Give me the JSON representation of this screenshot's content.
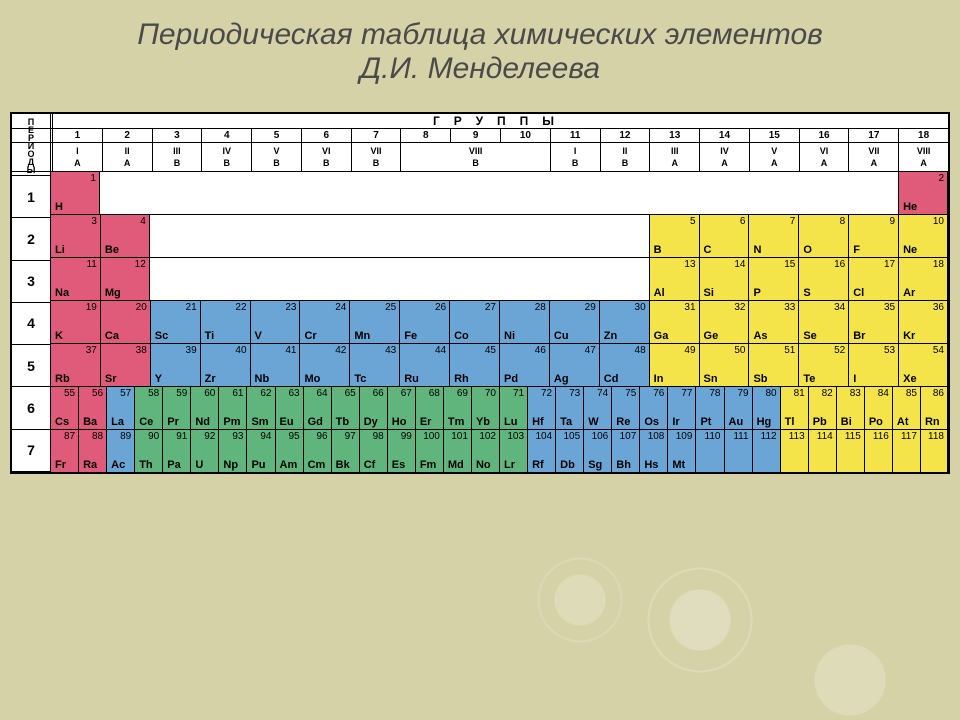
{
  "title": "Периодическая таблица химических элементов\nД.И. Менделеева",
  "side_label": "ПЕРИОДЫ",
  "group_header": "ГРУППЫ",
  "colors": {
    "red": "#e05a7a",
    "blue": "#6aa5d6",
    "green": "#5fb57c",
    "yellow": "#f5e34a",
    "page_bg": "#d6d2a8",
    "title_color": "#4a4a4a"
  },
  "group_numbers": [
    "1",
    "2",
    "3",
    "4",
    "5",
    "6",
    "7",
    "8",
    "9",
    "10",
    "11",
    "12",
    "13",
    "14",
    "15",
    "16",
    "17",
    "18"
  ],
  "group_roman": [
    {
      "top": "I",
      "bot": "A"
    },
    {
      "top": "II",
      "bot": "A"
    },
    {
      "top": "III",
      "bot": "B",
      "span": 1
    },
    {
      "top": "IV",
      "bot": "B"
    },
    {
      "top": "V",
      "bot": "B"
    },
    {
      "top": "VI",
      "bot": "B"
    },
    {
      "top": "VII",
      "bot": "B"
    },
    {
      "top": "VIII",
      "bot": "B",
      "span": 3
    },
    {
      "top": "I",
      "bot": "B"
    },
    {
      "top": "II",
      "bot": "B"
    },
    {
      "top": "III",
      "bot": "A"
    },
    {
      "top": "IV",
      "bot": "A"
    },
    {
      "top": "V",
      "bot": "A"
    },
    {
      "top": "VI",
      "bot": "A"
    },
    {
      "top": "VII",
      "bot": "A"
    },
    {
      "top": "VIII",
      "bot": "A"
    }
  ],
  "periods": [
    "1",
    "2",
    "3",
    "4",
    "5",
    "6",
    "7"
  ],
  "rows": [
    [
      {
        "g": 1,
        "Z": "1",
        "S": "H",
        "c": "red"
      },
      {
        "g": 18,
        "Z": "2",
        "S": "He",
        "c": "red"
      }
    ],
    [
      {
        "g": 1,
        "Z": "3",
        "S": "Li",
        "c": "red"
      },
      {
        "g": 2,
        "Z": "4",
        "S": "Be",
        "c": "red"
      },
      {
        "g": 13,
        "Z": "5",
        "S": "B",
        "c": "yellow"
      },
      {
        "g": 14,
        "Z": "6",
        "S": "C",
        "c": "yellow"
      },
      {
        "g": 15,
        "Z": "7",
        "S": "N",
        "c": "yellow"
      },
      {
        "g": 16,
        "Z": "8",
        "S": "O",
        "c": "yellow"
      },
      {
        "g": 17,
        "Z": "9",
        "S": "F",
        "c": "yellow"
      },
      {
        "g": 18,
        "Z": "10",
        "S": "Ne",
        "c": "yellow"
      }
    ],
    [
      {
        "g": 1,
        "Z": "11",
        "S": "Na",
        "c": "red"
      },
      {
        "g": 2,
        "Z": "12",
        "S": "Mg",
        "c": "red"
      },
      {
        "g": 13,
        "Z": "13",
        "S": "Al",
        "c": "yellow"
      },
      {
        "g": 14,
        "Z": "14",
        "S": "Si",
        "c": "yellow"
      },
      {
        "g": 15,
        "Z": "15",
        "S": "P",
        "c": "yellow"
      },
      {
        "g": 16,
        "Z": "16",
        "S": "S",
        "c": "yellow"
      },
      {
        "g": 17,
        "Z": "17",
        "S": "Cl",
        "c": "yellow"
      },
      {
        "g": 18,
        "Z": "18",
        "S": "Ar",
        "c": "yellow"
      }
    ],
    [
      {
        "g": 1,
        "Z": "19",
        "S": "K",
        "c": "red"
      },
      {
        "g": 2,
        "Z": "20",
        "S": "Ca",
        "c": "red"
      },
      {
        "g": 3,
        "Z": "21",
        "S": "Sc",
        "c": "blue"
      },
      {
        "g": 4,
        "Z": "22",
        "S": "Ti",
        "c": "blue"
      },
      {
        "g": 5,
        "Z": "23",
        "S": "V",
        "c": "blue"
      },
      {
        "g": 6,
        "Z": "24",
        "S": "Cr",
        "c": "blue"
      },
      {
        "g": 7,
        "Z": "25",
        "S": "Mn",
        "c": "blue"
      },
      {
        "g": 8,
        "Z": "26",
        "S": "Fe",
        "c": "blue"
      },
      {
        "g": 9,
        "Z": "27",
        "S": "Co",
        "c": "blue"
      },
      {
        "g": 10,
        "Z": "28",
        "S": "Ni",
        "c": "blue"
      },
      {
        "g": 11,
        "Z": "29",
        "S": "Cu",
        "c": "blue"
      },
      {
        "g": 12,
        "Z": "30",
        "S": "Zn",
        "c": "blue"
      },
      {
        "g": 13,
        "Z": "31",
        "S": "Ga",
        "c": "yellow"
      },
      {
        "g": 14,
        "Z": "32",
        "S": "Ge",
        "c": "yellow"
      },
      {
        "g": 15,
        "Z": "33",
        "S": "As",
        "c": "yellow"
      },
      {
        "g": 16,
        "Z": "34",
        "S": "Se",
        "c": "yellow"
      },
      {
        "g": 17,
        "Z": "35",
        "S": "Br",
        "c": "yellow"
      },
      {
        "g": 18,
        "Z": "36",
        "S": "Kr",
        "c": "yellow"
      }
    ],
    [
      {
        "g": 1,
        "Z": "37",
        "S": "Rb",
        "c": "red"
      },
      {
        "g": 2,
        "Z": "38",
        "S": "Sr",
        "c": "red"
      },
      {
        "g": 3,
        "Z": "39",
        "S": "Y",
        "c": "blue"
      },
      {
        "g": 4,
        "Z": "40",
        "S": "Zr",
        "c": "blue"
      },
      {
        "g": 5,
        "Z": "41",
        "S": "Nb",
        "c": "blue"
      },
      {
        "g": 6,
        "Z": "42",
        "S": "Mo",
        "c": "blue"
      },
      {
        "g": 7,
        "Z": "43",
        "S": "Tc",
        "c": "blue"
      },
      {
        "g": 8,
        "Z": "44",
        "S": "Ru",
        "c": "blue"
      },
      {
        "g": 9,
        "Z": "45",
        "S": "Rh",
        "c": "blue"
      },
      {
        "g": 10,
        "Z": "46",
        "S": "Pd",
        "c": "blue"
      },
      {
        "g": 11,
        "Z": "47",
        "S": "Ag",
        "c": "blue"
      },
      {
        "g": 12,
        "Z": "48",
        "S": "Cd",
        "c": "blue"
      },
      {
        "g": 13,
        "Z": "49",
        "S": "In",
        "c": "yellow"
      },
      {
        "g": 14,
        "Z": "50",
        "S": "Sn",
        "c": "yellow"
      },
      {
        "g": 15,
        "Z": "51",
        "S": "Sb",
        "c": "yellow"
      },
      {
        "g": 16,
        "Z": "52",
        "S": "Te",
        "c": "yellow"
      },
      {
        "g": 17,
        "Z": "53",
        "S": "I",
        "c": "yellow"
      },
      {
        "g": 18,
        "Z": "54",
        "S": "Xe",
        "c": "yellow"
      }
    ],
    [
      {
        "g": 1,
        "Z": "55",
        "S": "Cs",
        "c": "red"
      },
      {
        "g": 2,
        "Z": "56",
        "S": "Ba",
        "c": "red"
      },
      {
        "g": 3,
        "Z": "57",
        "S": "La",
        "c": "blue"
      },
      {
        "g": 3.1,
        "Z": "58",
        "S": "Ce",
        "c": "green"
      },
      {
        "g": 3.2,
        "Z": "59",
        "S": "Pr",
        "c": "green"
      },
      {
        "g": 3.3,
        "Z": "60",
        "S": "Nd",
        "c": "green"
      },
      {
        "g": 3.4,
        "Z": "61",
        "S": "Pm",
        "c": "green"
      },
      {
        "g": 3.5,
        "Z": "62",
        "S": "Sm",
        "c": "green"
      },
      {
        "g": 3.6,
        "Z": "63",
        "S": "Eu",
        "c": "green"
      },
      {
        "g": 3.7,
        "Z": "64",
        "S": "Gd",
        "c": "green"
      },
      {
        "g": 3.8,
        "Z": "65",
        "S": "Tb",
        "c": "green"
      },
      {
        "g": 3.9,
        "Z": "66",
        "S": "Dy",
        "c": "green"
      },
      {
        "g": 3.91,
        "Z": "67",
        "S": "Ho",
        "c": "green"
      },
      {
        "g": 3.92,
        "Z": "68",
        "S": "Er",
        "c": "green"
      },
      {
        "g": 3.93,
        "Z": "69",
        "S": "Tm",
        "c": "green"
      },
      {
        "g": 3.94,
        "Z": "70",
        "S": "Yb",
        "c": "green"
      },
      {
        "g": 3.95,
        "Z": "71",
        "S": "Lu",
        "c": "green"
      },
      {
        "g": 4,
        "Z": "72",
        "S": "Hf",
        "c": "blue"
      },
      {
        "g": 5,
        "Z": "73",
        "S": "Ta",
        "c": "blue"
      },
      {
        "g": 6,
        "Z": "74",
        "S": "W",
        "c": "blue"
      },
      {
        "g": 7,
        "Z": "75",
        "S": "Re",
        "c": "blue"
      },
      {
        "g": 8,
        "Z": "76",
        "S": "Os",
        "c": "blue"
      },
      {
        "g": 9,
        "Z": "77",
        "S": "Ir",
        "c": "blue"
      },
      {
        "g": 10,
        "Z": "78",
        "S": "Pt",
        "c": "blue"
      },
      {
        "g": 11,
        "Z": "79",
        "S": "Au",
        "c": "blue"
      },
      {
        "g": 12,
        "Z": "80",
        "S": "Hg",
        "c": "blue"
      },
      {
        "g": 13,
        "Z": "81",
        "S": "Tl",
        "c": "yellow"
      },
      {
        "g": 14,
        "Z": "82",
        "S": "Pb",
        "c": "yellow"
      },
      {
        "g": 15,
        "Z": "83",
        "S": "Bi",
        "c": "yellow"
      },
      {
        "g": 16,
        "Z": "84",
        "S": "Po",
        "c": "yellow"
      },
      {
        "g": 17,
        "Z": "85",
        "S": "At",
        "c": "yellow"
      },
      {
        "g": 18,
        "Z": "86",
        "S": "Rn",
        "c": "yellow"
      }
    ],
    [
      {
        "g": 1,
        "Z": "87",
        "S": "Fr",
        "c": "red"
      },
      {
        "g": 2,
        "Z": "88",
        "S": "Ra",
        "c": "red"
      },
      {
        "g": 3,
        "Z": "89",
        "S": "Ac",
        "c": "blue"
      },
      {
        "g": 3.1,
        "Z": "90",
        "S": "Th",
        "c": "green"
      },
      {
        "g": 3.2,
        "Z": "91",
        "S": "Pa",
        "c": "green"
      },
      {
        "g": 3.3,
        "Z": "92",
        "S": "U",
        "c": "green"
      },
      {
        "g": 3.4,
        "Z": "93",
        "S": "Np",
        "c": "green"
      },
      {
        "g": 3.5,
        "Z": "94",
        "S": "Pu",
        "c": "green"
      },
      {
        "g": 3.6,
        "Z": "95",
        "S": "Am",
        "c": "green"
      },
      {
        "g": 3.7,
        "Z": "96",
        "S": "Cm",
        "c": "green"
      },
      {
        "g": 3.8,
        "Z": "97",
        "S": "Bk",
        "c": "green"
      },
      {
        "g": 3.9,
        "Z": "98",
        "S": "Cf",
        "c": "green"
      },
      {
        "g": 3.91,
        "Z": "99",
        "S": "Es",
        "c": "green"
      },
      {
        "g": 3.92,
        "Z": "100",
        "S": "Fm",
        "c": "green"
      },
      {
        "g": 3.93,
        "Z": "101",
        "S": "Md",
        "c": "green"
      },
      {
        "g": 3.94,
        "Z": "102",
        "S": "No",
        "c": "green"
      },
      {
        "g": 3.95,
        "Z": "103",
        "S": "Lr",
        "c": "green"
      },
      {
        "g": 4,
        "Z": "104",
        "S": "Rf",
        "c": "blue"
      },
      {
        "g": 5,
        "Z": "105",
        "S": "Db",
        "c": "blue"
      },
      {
        "g": 6,
        "Z": "106",
        "S": "Sg",
        "c": "blue"
      },
      {
        "g": 7,
        "Z": "107",
        "S": "Bh",
        "c": "blue"
      },
      {
        "g": 8,
        "Z": "108",
        "S": "Hs",
        "c": "blue"
      },
      {
        "g": 9,
        "Z": "109",
        "S": "Mt",
        "c": "blue"
      },
      {
        "g": 10,
        "Z": "110",
        "S": "",
        "c": "blue"
      },
      {
        "g": 11,
        "Z": "111",
        "S": "",
        "c": "blue"
      },
      {
        "g": 12,
        "Z": "112",
        "S": "",
        "c": "blue"
      },
      {
        "g": 13,
        "Z": "113",
        "S": "",
        "c": "yellow"
      },
      {
        "g": 14,
        "Z": "114",
        "S": "",
        "c": "yellow"
      },
      {
        "g": 15,
        "Z": "115",
        "S": "",
        "c": "yellow"
      },
      {
        "g": 16,
        "Z": "116",
        "S": "",
        "c": "yellow"
      },
      {
        "g": 17,
        "Z": "117",
        "S": "",
        "c": "yellow"
      },
      {
        "g": 18,
        "Z": "118",
        "S": "",
        "c": "yellow"
      }
    ]
  ],
  "long_rows_span": 32
}
